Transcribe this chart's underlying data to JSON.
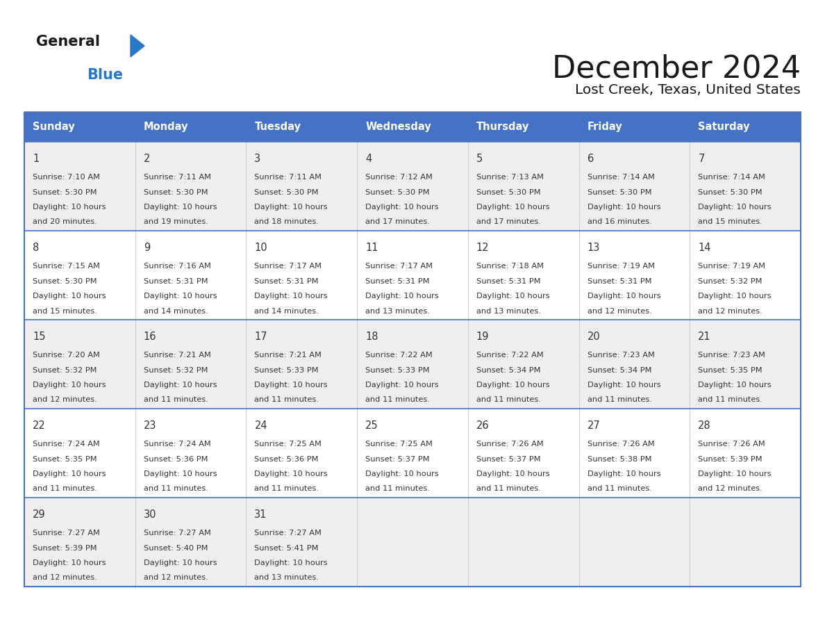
{
  "title": "December 2024",
  "subtitle": "Lost Creek, Texas, United States",
  "header_color": "#4472C4",
  "header_text_color": "#FFFFFF",
  "cell_bg_white": "#FFFFFF",
  "cell_bg_gray": "#EFEFEF",
  "border_color": "#4472C4",
  "row_divider_color": "#4472C4",
  "col_divider_color": "#CCCCCC",
  "day_names": [
    "Sunday",
    "Monday",
    "Tuesday",
    "Wednesday",
    "Thursday",
    "Friday",
    "Saturday"
  ],
  "logo_general_color": "#1a1a1a",
  "logo_blue_color": "#2878C8",
  "text_color": "#333333",
  "weeks": [
    [
      {
        "day": 1,
        "sunrise": "7:10 AM",
        "sunset": "5:30 PM",
        "daylight": "10 hours and 20 minutes."
      },
      {
        "day": 2,
        "sunrise": "7:11 AM",
        "sunset": "5:30 PM",
        "daylight": "10 hours and 19 minutes."
      },
      {
        "day": 3,
        "sunrise": "7:11 AM",
        "sunset": "5:30 PM",
        "daylight": "10 hours and 18 minutes."
      },
      {
        "day": 4,
        "sunrise": "7:12 AM",
        "sunset": "5:30 PM",
        "daylight": "10 hours and 17 minutes."
      },
      {
        "day": 5,
        "sunrise": "7:13 AM",
        "sunset": "5:30 PM",
        "daylight": "10 hours and 17 minutes."
      },
      {
        "day": 6,
        "sunrise": "7:14 AM",
        "sunset": "5:30 PM",
        "daylight": "10 hours and 16 minutes."
      },
      {
        "day": 7,
        "sunrise": "7:14 AM",
        "sunset": "5:30 PM",
        "daylight": "10 hours and 15 minutes."
      }
    ],
    [
      {
        "day": 8,
        "sunrise": "7:15 AM",
        "sunset": "5:30 PM",
        "daylight": "10 hours and 15 minutes."
      },
      {
        "day": 9,
        "sunrise": "7:16 AM",
        "sunset": "5:31 PM",
        "daylight": "10 hours and 14 minutes."
      },
      {
        "day": 10,
        "sunrise": "7:17 AM",
        "sunset": "5:31 PM",
        "daylight": "10 hours and 14 minutes."
      },
      {
        "day": 11,
        "sunrise": "7:17 AM",
        "sunset": "5:31 PM",
        "daylight": "10 hours and 13 minutes."
      },
      {
        "day": 12,
        "sunrise": "7:18 AM",
        "sunset": "5:31 PM",
        "daylight": "10 hours and 13 minutes."
      },
      {
        "day": 13,
        "sunrise": "7:19 AM",
        "sunset": "5:31 PM",
        "daylight": "10 hours and 12 minutes."
      },
      {
        "day": 14,
        "sunrise": "7:19 AM",
        "sunset": "5:32 PM",
        "daylight": "10 hours and 12 minutes."
      }
    ],
    [
      {
        "day": 15,
        "sunrise": "7:20 AM",
        "sunset": "5:32 PM",
        "daylight": "10 hours and 12 minutes."
      },
      {
        "day": 16,
        "sunrise": "7:21 AM",
        "sunset": "5:32 PM",
        "daylight": "10 hours and 11 minutes."
      },
      {
        "day": 17,
        "sunrise": "7:21 AM",
        "sunset": "5:33 PM",
        "daylight": "10 hours and 11 minutes."
      },
      {
        "day": 18,
        "sunrise": "7:22 AM",
        "sunset": "5:33 PM",
        "daylight": "10 hours and 11 minutes."
      },
      {
        "day": 19,
        "sunrise": "7:22 AM",
        "sunset": "5:34 PM",
        "daylight": "10 hours and 11 minutes."
      },
      {
        "day": 20,
        "sunrise": "7:23 AM",
        "sunset": "5:34 PM",
        "daylight": "10 hours and 11 minutes."
      },
      {
        "day": 21,
        "sunrise": "7:23 AM",
        "sunset": "5:35 PM",
        "daylight": "10 hours and 11 minutes."
      }
    ],
    [
      {
        "day": 22,
        "sunrise": "7:24 AM",
        "sunset": "5:35 PM",
        "daylight": "10 hours and 11 minutes."
      },
      {
        "day": 23,
        "sunrise": "7:24 AM",
        "sunset": "5:36 PM",
        "daylight": "10 hours and 11 minutes."
      },
      {
        "day": 24,
        "sunrise": "7:25 AM",
        "sunset": "5:36 PM",
        "daylight": "10 hours and 11 minutes."
      },
      {
        "day": 25,
        "sunrise": "7:25 AM",
        "sunset": "5:37 PM",
        "daylight": "10 hours and 11 minutes."
      },
      {
        "day": 26,
        "sunrise": "7:26 AM",
        "sunset": "5:37 PM",
        "daylight": "10 hours and 11 minutes."
      },
      {
        "day": 27,
        "sunrise": "7:26 AM",
        "sunset": "5:38 PM",
        "daylight": "10 hours and 11 minutes."
      },
      {
        "day": 28,
        "sunrise": "7:26 AM",
        "sunset": "5:39 PM",
        "daylight": "10 hours and 12 minutes."
      }
    ],
    [
      {
        "day": 29,
        "sunrise": "7:27 AM",
        "sunset": "5:39 PM",
        "daylight": "10 hours and 12 minutes."
      },
      {
        "day": 30,
        "sunrise": "7:27 AM",
        "sunset": "5:40 PM",
        "daylight": "10 hours and 12 minutes."
      },
      {
        "day": 31,
        "sunrise": "7:27 AM",
        "sunset": "5:41 PM",
        "daylight": "10 hours and 13 minutes."
      },
      null,
      null,
      null,
      null
    ]
  ],
  "fig_width": 11.88,
  "fig_height": 9.18
}
